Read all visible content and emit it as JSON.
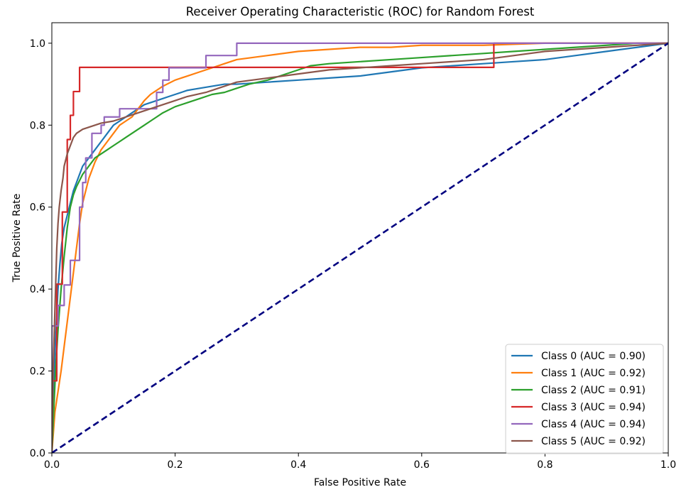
{
  "chart_data": {
    "type": "line",
    "title": "Receiver Operating Characteristic (ROC) for Random Forest",
    "xlabel": "False Positive Rate",
    "ylabel": "True Positive Rate",
    "xlim": [
      0.0,
      1.0
    ],
    "ylim": [
      0.0,
      1.05
    ],
    "xticks": [
      "0.0",
      "0.2",
      "0.4",
      "0.6",
      "0.8",
      "1.0"
    ],
    "yticks": [
      "0.0",
      "0.2",
      "0.4",
      "0.6",
      "0.8",
      "1.0"
    ],
    "xtick_values": [
      0.0,
      0.2,
      0.4,
      0.6,
      0.8,
      1.0
    ],
    "ytick_values": [
      0.0,
      0.2,
      0.4,
      0.6,
      0.8,
      1.0
    ],
    "grid": false,
    "legend_position": "bottom-right",
    "series": [
      {
        "name": "Class 0 (AUC = 0.90)",
        "color": "#1f77b4",
        "x": [
          0.0,
          0.002,
          0.004,
          0.006,
          0.008,
          0.01,
          0.013,
          0.016,
          0.02,
          0.025,
          0.03,
          0.035,
          0.04,
          0.045,
          0.05,
          0.06,
          0.07,
          0.08,
          0.09,
          0.1,
          0.11,
          0.12,
          0.13,
          0.14,
          0.15,
          0.16,
          0.17,
          0.18,
          0.19,
          0.2,
          0.21,
          0.22,
          0.24,
          0.26,
          0.28,
          0.3,
          0.35,
          0.4,
          0.45,
          0.5,
          0.55,
          0.6,
          0.65,
          0.7,
          0.75,
          0.8,
          0.85,
          0.9,
          0.95,
          1.0
        ],
        "y": [
          0.0,
          0.12,
          0.2,
          0.28,
          0.34,
          0.4,
          0.46,
          0.51,
          0.55,
          0.58,
          0.61,
          0.64,
          0.66,
          0.68,
          0.7,
          0.72,
          0.74,
          0.76,
          0.78,
          0.8,
          0.81,
          0.82,
          0.83,
          0.84,
          0.85,
          0.855,
          0.86,
          0.865,
          0.87,
          0.875,
          0.88,
          0.885,
          0.89,
          0.895,
          0.9,
          0.9,
          0.905,
          0.91,
          0.915,
          0.92,
          0.93,
          0.94,
          0.945,
          0.95,
          0.955,
          0.96,
          0.97,
          0.98,
          0.99,
          1.0
        ]
      },
      {
        "name": "Class 1 (AUC = 0.92)",
        "color": "#ff7f0e",
        "x": [
          0.0,
          0.005,
          0.01,
          0.015,
          0.02,
          0.025,
          0.03,
          0.035,
          0.04,
          0.045,
          0.05,
          0.06,
          0.07,
          0.08,
          0.09,
          0.1,
          0.11,
          0.12,
          0.13,
          0.14,
          0.15,
          0.16,
          0.17,
          0.18,
          0.2,
          0.22,
          0.24,
          0.26,
          0.28,
          0.3,
          0.35,
          0.4,
          0.45,
          0.5,
          0.55,
          0.6,
          0.7,
          0.8,
          0.9,
          1.0
        ],
        "y": [
          0.0,
          0.1,
          0.15,
          0.2,
          0.26,
          0.32,
          0.38,
          0.44,
          0.5,
          0.56,
          0.61,
          0.67,
          0.71,
          0.74,
          0.76,
          0.78,
          0.8,
          0.81,
          0.82,
          0.84,
          0.86,
          0.875,
          0.885,
          0.895,
          0.91,
          0.92,
          0.93,
          0.94,
          0.95,
          0.96,
          0.97,
          0.98,
          0.985,
          0.99,
          0.99,
          0.995,
          0.995,
          1.0,
          1.0,
          1.0
        ]
      },
      {
        "name": "Class 2 (AUC = 0.91)",
        "color": "#2ca02c",
        "x": [
          0.0,
          0.003,
          0.006,
          0.01,
          0.015,
          0.02,
          0.025,
          0.03,
          0.035,
          0.04,
          0.05,
          0.06,
          0.07,
          0.08,
          0.09,
          0.1,
          0.11,
          0.12,
          0.13,
          0.14,
          0.15,
          0.16,
          0.17,
          0.18,
          0.2,
          0.22,
          0.24,
          0.26,
          0.28,
          0.3,
          0.32,
          0.35,
          0.38,
          0.4,
          0.42,
          0.45,
          0.5,
          0.55,
          0.6,
          0.65,
          0.7,
          0.75,
          0.8,
          0.85,
          0.9,
          0.95,
          1.0
        ],
        "y": [
          0.0,
          0.1,
          0.2,
          0.3,
          0.4,
          0.48,
          0.55,
          0.6,
          0.63,
          0.65,
          0.68,
          0.7,
          0.72,
          0.73,
          0.74,
          0.75,
          0.76,
          0.77,
          0.78,
          0.79,
          0.8,
          0.81,
          0.82,
          0.83,
          0.845,
          0.855,
          0.865,
          0.875,
          0.88,
          0.89,
          0.9,
          0.91,
          0.925,
          0.935,
          0.945,
          0.95,
          0.955,
          0.96,
          0.965,
          0.97,
          0.975,
          0.98,
          0.985,
          0.99,
          0.995,
          1.0,
          1.0
        ]
      },
      {
        "name": "Class 3 (AUC = 0.94)",
        "color": "#d62728",
        "x": [
          0.0,
          0.0,
          0.008,
          0.008,
          0.017,
          0.017,
          0.025,
          0.025,
          0.03,
          0.03,
          0.035,
          0.035,
          0.045,
          0.045,
          0.05,
          0.05,
          0.717,
          0.717,
          1.0
        ],
        "y": [
          0.0,
          0.176,
          0.176,
          0.412,
          0.412,
          0.588,
          0.588,
          0.765,
          0.765,
          0.824,
          0.824,
          0.882,
          0.882,
          0.941,
          0.941,
          0.941,
          0.941,
          1.0,
          1.0
        ]
      },
      {
        "name": "Class 4 (AUC = 0.94)",
        "color": "#9467bd",
        "x": [
          0.0,
          0.0,
          0.01,
          0.01,
          0.02,
          0.02,
          0.03,
          0.03,
          0.045,
          0.045,
          0.05,
          0.05,
          0.055,
          0.055,
          0.065,
          0.065,
          0.08,
          0.08,
          0.085,
          0.085,
          0.11,
          0.11,
          0.17,
          0.17,
          0.18,
          0.18,
          0.19,
          0.19,
          0.25,
          0.25,
          0.28,
          0.28,
          0.3,
          0.3,
          1.0
        ],
        "y": [
          0.0,
          0.31,
          0.31,
          0.36,
          0.36,
          0.41,
          0.41,
          0.47,
          0.47,
          0.6,
          0.6,
          0.66,
          0.66,
          0.72,
          0.72,
          0.78,
          0.78,
          0.8,
          0.8,
          0.82,
          0.82,
          0.84,
          0.84,
          0.88,
          0.88,
          0.91,
          0.91,
          0.94,
          0.94,
          0.97,
          0.97,
          0.97,
          0.97,
          1.0,
          1.0
        ]
      },
      {
        "name": "Class 5 (AUC = 0.92)",
        "color": "#8c564b",
        "x": [
          0.0,
          0.002,
          0.004,
          0.006,
          0.008,
          0.01,
          0.012,
          0.015,
          0.018,
          0.02,
          0.025,
          0.03,
          0.035,
          0.04,
          0.05,
          0.06,
          0.07,
          0.08,
          0.1,
          0.12,
          0.14,
          0.16,
          0.18,
          0.2,
          0.22,
          0.25,
          0.28,
          0.3,
          0.35,
          0.4,
          0.45,
          0.5,
          0.55,
          0.6,
          0.65,
          0.7,
          0.75,
          0.8,
          0.85,
          0.9,
          0.95,
          1.0
        ],
        "y": [
          0.0,
          0.2,
          0.3,
          0.4,
          0.5,
          0.56,
          0.6,
          0.64,
          0.67,
          0.7,
          0.73,
          0.75,
          0.77,
          0.78,
          0.79,
          0.795,
          0.8,
          0.805,
          0.81,
          0.82,
          0.83,
          0.84,
          0.85,
          0.86,
          0.87,
          0.88,
          0.895,
          0.905,
          0.915,
          0.925,
          0.935,
          0.94,
          0.945,
          0.95,
          0.955,
          0.96,
          0.97,
          0.98,
          0.985,
          0.99,
          0.995,
          1.0
        ]
      }
    ],
    "reference_line": {
      "x": [
        0.0,
        1.0
      ],
      "y": [
        0.0,
        1.0
      ],
      "color": "#000080",
      "style": "dashed"
    }
  }
}
